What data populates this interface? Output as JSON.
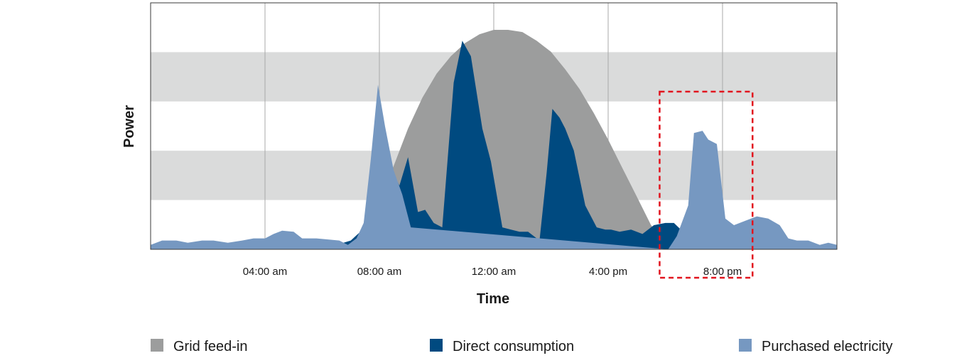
{
  "chart_data": {
    "type": "area",
    "xlabel": "Time",
    "ylabel": "Power",
    "x_range_hours": [
      0,
      24
    ],
    "y_range": [
      0,
      1
    ],
    "x_ticks": [
      {
        "hour": 4,
        "label": "04:00 am"
      },
      {
        "hour": 8,
        "label": "08:00 am"
      },
      {
        "hour": 12,
        "label": "12:00 am"
      },
      {
        "hour": 16,
        "label": "4:00 pm"
      },
      {
        "hour": 20,
        "label": "8:00 pm"
      }
    ],
    "background_bands": [
      [
        0.2,
        0.4
      ],
      [
        0.6,
        0.8
      ]
    ],
    "highlight_box_hours": [
      17.8,
      21.05
    ],
    "series": [
      {
        "name": "Grid feed-in",
        "color": "#9c9d9d",
        "x": [
          7.0,
          7.5,
          8.0,
          8.5,
          9.0,
          9.5,
          10.0,
          10.5,
          11.0,
          11.5,
          12.0,
          12.5,
          13.0,
          13.5,
          14.0,
          14.5,
          15.0,
          15.5,
          16.0,
          16.5,
          17.0,
          17.5,
          18.0,
          18.3
        ],
        "y": [
          0.04,
          0.1,
          0.22,
          0.38,
          0.55,
          0.69,
          0.8,
          0.88,
          0.94,
          0.98,
          1.0,
          1.0,
          0.99,
          0.95,
          0.9,
          0.82,
          0.73,
          0.62,
          0.5,
          0.37,
          0.24,
          0.11,
          0.03,
          0.0
        ]
      },
      {
        "name": "Direct consumption",
        "color": "#004a80",
        "x": [
          4.7,
          5.2,
          6.0,
          6.5,
          7.0,
          7.5,
          7.9,
          8.4,
          8.7,
          9.0,
          9.35,
          9.6,
          9.9,
          10.2,
          10.6,
          10.9,
          11.2,
          11.6,
          11.9,
          12.3,
          12.6,
          12.9,
          13.2,
          13.6,
          13.85,
          14.05,
          14.3,
          14.5,
          14.8,
          15.2,
          15.6,
          15.9,
          16.1,
          16.4,
          16.8,
          17.2,
          17.6,
          18.0,
          18.3,
          18.7,
          19.2,
          19.7,
          20.1
        ],
        "y": [
          0.0,
          0.02,
          0.04,
          0.02,
          0.04,
          0.1,
          0.25,
          0.37,
          0.29,
          0.42,
          0.17,
          0.18,
          0.12,
          0.1,
          0.76,
          0.95,
          0.88,
          0.55,
          0.4,
          0.1,
          0.09,
          0.08,
          0.08,
          0.04,
          0.35,
          0.64,
          0.6,
          0.55,
          0.45,
          0.2,
          0.1,
          0.09,
          0.09,
          0.08,
          0.09,
          0.07,
          0.11,
          0.12,
          0.12,
          0.07,
          0.03,
          0.02,
          0.0
        ]
      },
      {
        "name": "Purchased electricity",
        "color": "#7698c1",
        "x": [
          0.0,
          0.4,
          0.9,
          1.3,
          1.8,
          2.2,
          2.7,
          3.2,
          3.6,
          4.0,
          4.3,
          4.6,
          5.0,
          5.3,
          5.8,
          6.2,
          6.6,
          6.9,
          7.2,
          7.45,
          7.7,
          7.95,
          8.2,
          8.5,
          8.8,
          9.1,
          18.1,
          18.4,
          18.8,
          19.0,
          19.3,
          19.5,
          19.8,
          20.1,
          20.4,
          20.8,
          21.2,
          21.6,
          22.0,
          22.3,
          22.6,
          23.0,
          23.4,
          23.7,
          24.0
        ],
        "y": [
          0.02,
          0.04,
          0.04,
          0.03,
          0.04,
          0.04,
          0.03,
          0.04,
          0.05,
          0.05,
          0.07,
          0.085,
          0.08,
          0.05,
          0.05,
          0.045,
          0.04,
          0.02,
          0.05,
          0.12,
          0.41,
          0.75,
          0.56,
          0.36,
          0.25,
          0.1,
          0.0,
          0.06,
          0.2,
          0.53,
          0.54,
          0.5,
          0.48,
          0.14,
          0.11,
          0.13,
          0.15,
          0.14,
          0.11,
          0.05,
          0.04,
          0.04,
          0.02,
          0.03,
          0.02
        ]
      }
    ]
  }
}
